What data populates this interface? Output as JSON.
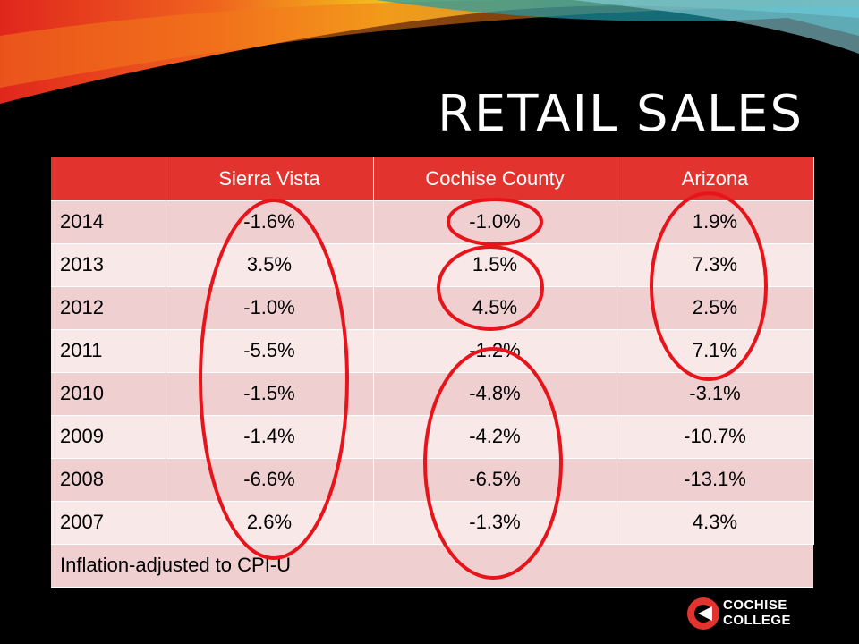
{
  "slide": {
    "title": "RETAIL SALES"
  },
  "table": {
    "headers": [
      "",
      "Sierra Vista",
      "Cochise County",
      "Arizona"
    ],
    "rows": [
      {
        "year": "2014",
        "sierra_vista": "-1.6%",
        "cochise_county": "-1.0%",
        "arizona": "1.9%"
      },
      {
        "year": "2013",
        "sierra_vista": "3.5%",
        "cochise_county": "1.5%",
        "arizona": "7.3%"
      },
      {
        "year": "2012",
        "sierra_vista": "-1.0%",
        "cochise_county": "4.5%",
        "arizona": "2.5%"
      },
      {
        "year": "2011",
        "sierra_vista": "-5.5%",
        "cochise_county": "-1.2%",
        "arizona": "7.1%"
      },
      {
        "year": "2010",
        "sierra_vista": "-1.5%",
        "cochise_county": "-4.8%",
        "arizona": "-3.1%"
      },
      {
        "year": "2009",
        "sierra_vista": "-1.4%",
        "cochise_county": "-4.2%",
        "arizona": "-10.7%"
      },
      {
        "year": "2008",
        "sierra_vista": "-6.6%",
        "cochise_county": "-6.5%",
        "arizona": "-13.1%"
      },
      {
        "year": "2007",
        "sierra_vista": "2.6%",
        "cochise_county": "-1.3%",
        "arizona": "4.3%"
      }
    ],
    "footnote": "Inflation-adjusted to CPI-U"
  },
  "logo": {
    "line1": "COCHISE",
    "line2": "COLLEGE",
    "icon": "cochise-college-logo-icon"
  },
  "colors": {
    "header_bg": "#e2332f",
    "row_dark": "#efcfcf",
    "row_light": "#f8e8e8",
    "annotation_circle": "#e8141c"
  }
}
